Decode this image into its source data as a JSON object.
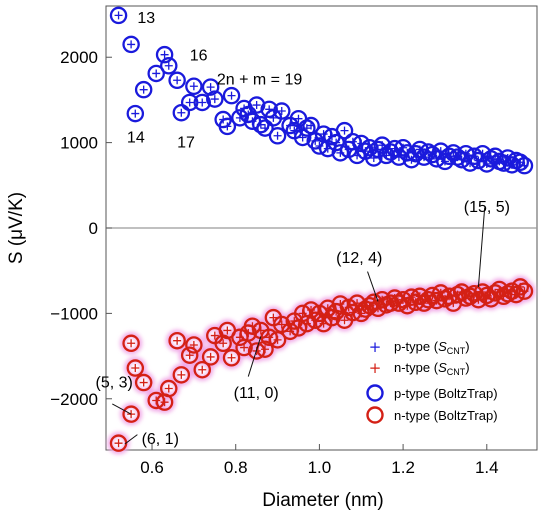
{
  "chart_data": {
    "type": "scatter",
    "xlabel": "Diameter (nm)",
    "ylabel": "S (μV/K)",
    "xlim": [
      0.49,
      1.52
    ],
    "ylim": [
      -2600,
      2600
    ],
    "x_ticks": [
      0.6,
      0.8,
      1.0,
      1.2,
      1.4
    ],
    "x_tick_labels": [
      "0.6",
      "0.8",
      "1.0",
      "1.2",
      "1.4"
    ],
    "y_ticks": [
      2000,
      1000,
      0,
      -1000,
      -2000
    ],
    "y_tick_labels": [
      "2000",
      "1000",
      "0",
      "−1000",
      "−2000"
    ],
    "grid": false,
    "zero_line": true,
    "legend_position": "right",
    "colors": {
      "p_type": "#1a1adc",
      "n_type": "#d42015",
      "n_glow": "#f0a6e6"
    },
    "series": [
      {
        "name": "p-type (S_CNT)",
        "legend_label": "p-type (",
        "legend_symbol": "S",
        "legend_subscript": "CNT",
        "marker": "plus",
        "group": "p",
        "x": [
          0.52,
          0.55,
          0.56,
          0.58,
          0.61,
          0.63,
          0.64,
          0.66,
          0.67,
          0.69,
          0.7,
          0.72,
          0.74,
          0.75,
          0.77,
          0.78,
          0.79,
          0.81,
          0.82,
          0.83,
          0.84,
          0.85,
          0.86,
          0.87,
          0.88,
          0.89,
          0.9,
          0.91,
          0.93,
          0.94,
          0.95,
          0.96,
          0.97,
          0.98,
          0.99,
          1.0,
          1.01,
          1.02,
          1.03,
          1.04,
          1.05,
          1.06,
          1.07,
          1.08,
          1.09,
          1.1,
          1.11,
          1.12,
          1.13,
          1.14,
          1.15,
          1.16,
          1.17,
          1.18,
          1.19,
          1.2,
          1.21,
          1.22,
          1.23,
          1.24,
          1.25,
          1.26,
          1.27,
          1.28,
          1.29,
          1.3,
          1.31,
          1.32,
          1.33,
          1.34,
          1.35,
          1.36,
          1.37,
          1.38,
          1.39,
          1.4,
          1.41,
          1.42,
          1.43,
          1.44,
          1.45,
          1.46,
          1.47,
          1.48,
          1.49
        ],
        "y": [
          2490,
          2150,
          1340,
          1620,
          1810,
          2030,
          1900,
          1730,
          1350,
          1470,
          1660,
          1470,
          1650,
          1510,
          1270,
          1190,
          1550,
          1290,
          1400,
          1330,
          1250,
          1440,
          1210,
          1170,
          1390,
          1290,
          1080,
          1370,
          1200,
          1140,
          1280,
          1060,
          1170,
          1200,
          1020,
          960,
          1100,
          930,
          1070,
          1000,
          880,
          1140,
          920,
          1010,
          850,
          990,
          900,
          940,
          820,
          920,
          970,
          850,
          890,
          930,
          830,
          940,
          880,
          800,
          870,
          920,
          830,
          890,
          860,
          810,
          900,
          780,
          840,
          880,
          830,
          800,
          870,
          760,
          840,
          790,
          870,
          750,
          810,
          840,
          780,
          760,
          820,
          740,
          790,
          770,
          730
        ]
      },
      {
        "name": "n-type (S_CNT)",
        "legend_label": "n-type (",
        "legend_symbol": "S",
        "legend_subscript": "CNT",
        "marker": "plus",
        "group": "n",
        "x": [
          0.52,
          0.55,
          0.55,
          0.56,
          0.58,
          0.61,
          0.63,
          0.64,
          0.66,
          0.67,
          0.69,
          0.7,
          0.72,
          0.74,
          0.75,
          0.77,
          0.78,
          0.79,
          0.81,
          0.82,
          0.83,
          0.84,
          0.85,
          0.86,
          0.87,
          0.88,
          0.89,
          0.9,
          0.91,
          0.93,
          0.94,
          0.95,
          0.96,
          0.97,
          0.98,
          0.99,
          1.0,
          1.01,
          1.02,
          1.03,
          1.04,
          1.05,
          1.06,
          1.07,
          1.08,
          1.09,
          1.1,
          1.11,
          1.12,
          1.13,
          1.14,
          1.15,
          1.16,
          1.17,
          1.18,
          1.19,
          1.2,
          1.21,
          1.22,
          1.23,
          1.24,
          1.25,
          1.26,
          1.27,
          1.28,
          1.29,
          1.3,
          1.31,
          1.32,
          1.33,
          1.34,
          1.35,
          1.36,
          1.37,
          1.38,
          1.39,
          1.4,
          1.41,
          1.42,
          1.43,
          1.44,
          1.45,
          1.46,
          1.47,
          1.48,
          1.49
        ],
        "y": [
          -2520,
          -2180,
          -1350,
          -1640,
          -1810,
          -2020,
          -2040,
          -1880,
          -1320,
          -1720,
          -1490,
          -1370,
          -1660,
          -1510,
          -1260,
          -1350,
          -1200,
          -1520,
          -1280,
          -1400,
          -1230,
          -1150,
          -1440,
          -1200,
          -1420,
          -1280,
          -1050,
          -1310,
          -1130,
          -1210,
          -1090,
          -1170,
          -1000,
          -1120,
          -960,
          -1080,
          -1000,
          -1120,
          -940,
          -1050,
          -980,
          -890,
          -1080,
          -930,
          -990,
          -880,
          -1000,
          -950,
          -910,
          -870,
          -940,
          -840,
          -900,
          -880,
          -820,
          -880,
          -840,
          -910,
          -810,
          -870,
          -800,
          -880,
          -840,
          -790,
          -850,
          -760,
          -830,
          -800,
          -880,
          -780,
          -750,
          -820,
          -800,
          -770,
          -840,
          -750,
          -790,
          -830,
          -760,
          -720,
          -800,
          -770,
          -740,
          -780,
          -690,
          -740
        ]
      },
      {
        "name": "p-type (BoltzTrap)",
        "legend_label": "p-type (BoltzTrap)",
        "marker": "circle",
        "group": "p",
        "same_points_as": "p-type (S_CNT)"
      },
      {
        "name": "n-type (BoltzTrap)",
        "legend_label": "n-type (BoltzTrap)",
        "marker": "circle",
        "group": "n",
        "same_points_as": "n-type (S_CNT)"
      }
    ],
    "annotations": [
      {
        "id": "13",
        "text": "13",
        "x": 0.565,
        "y": 2400
      },
      {
        "id": "16",
        "text": "16",
        "x": 0.69,
        "y": 1960
      },
      {
        "id": "2n",
        "text": "2n + m = 19",
        "x": 0.755,
        "y": 1680
      },
      {
        "id": "14",
        "text": "14",
        "x": 0.54,
        "y": 1000
      },
      {
        "id": "17",
        "text": "17",
        "x": 0.66,
        "y": 940
      },
      {
        "id": "15-5",
        "text": "(15, 5)",
        "x": 1.345,
        "y": 190
      },
      {
        "id": "12-4",
        "text": "(12, 4)",
        "x": 1.04,
        "y": -410
      },
      {
        "id": "11-0",
        "text": "(11, 0)",
        "x": 0.795,
        "y": -1990
      },
      {
        "id": "5-3",
        "text": "(5, 3)",
        "x": 0.465,
        "y": -1870
      },
      {
        "id": "6-1",
        "text": "(6, 1)",
        "x": 0.575,
        "y": -2530
      }
    ],
    "leaders": [
      {
        "from": [
          1.395,
          240
        ],
        "to": [
          1.38,
          -690
        ]
      },
      {
        "from": [
          1.115,
          -510
        ],
        "to": [
          1.14,
          -860
        ]
      },
      {
        "from": [
          0.83,
          -1740
        ],
        "to": [
          0.86,
          -1270
        ]
      },
      {
        "from": [
          0.505,
          -2060
        ],
        "to": [
          0.55,
          -2180
        ]
      },
      {
        "from": [
          0.535,
          -2530
        ],
        "to": [
          0.565,
          -2420
        ]
      }
    ]
  }
}
